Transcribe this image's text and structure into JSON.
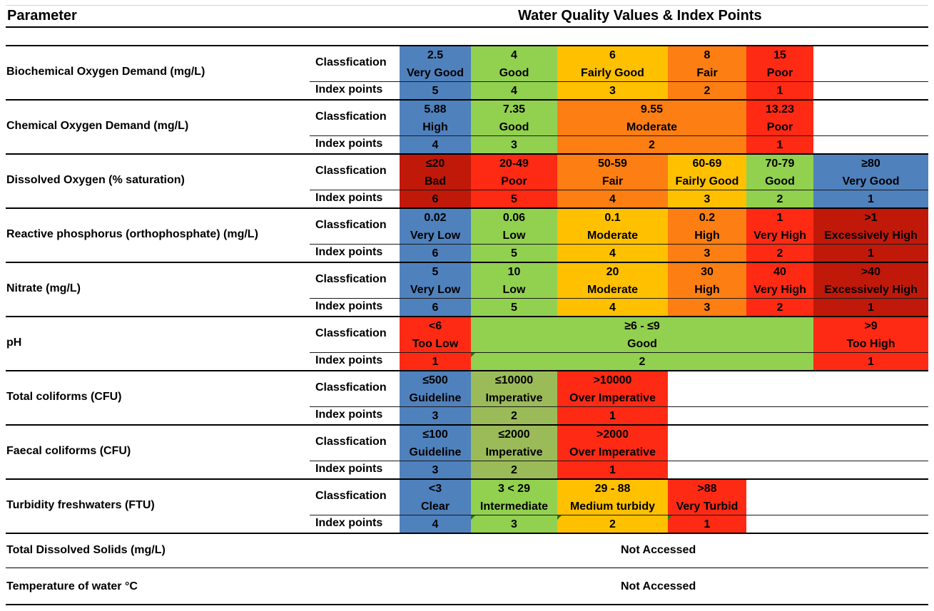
{
  "header": {
    "parameter_label": "Parameter",
    "title": "Water Quality Values & Index Points"
  },
  "row_labels": {
    "classification": "Classfication",
    "index": "Index points"
  },
  "colors": {
    "blue": "#4f81bd",
    "green": "#92d050",
    "olive": "#9bbb59",
    "yellow": "#ffc000",
    "orange": "#fd7e12",
    "red": "#ff2a14",
    "darkred": "#c0190a"
  },
  "parameters": [
    {
      "name": "Biochemical Oxygen Demand  (mg/L)",
      "cells": [
        {
          "value": "2.5",
          "label": "Very Good",
          "points": "5",
          "color": "blue"
        },
        {
          "value": "4",
          "label": "Good",
          "points": "4",
          "color": "green"
        },
        {
          "value": "6",
          "label": "Fairly Good",
          "points": "3",
          "color": "yellow"
        },
        {
          "value": "8",
          "label": "Fair",
          "points": "2",
          "color": "orange"
        },
        {
          "value": "15",
          "label": "Poor",
          "points": "1",
          "color": "red"
        }
      ]
    },
    {
      "name": "Chemical Oxygen Demand (mg/L)",
      "cells": [
        {
          "value": "5.88",
          "label": "High",
          "points": "4",
          "color": "blue"
        },
        {
          "value": "7.35",
          "label": "Good",
          "points": "3",
          "color": "green"
        },
        {
          "value": "9.55",
          "label": "Moderate",
          "points": "2",
          "color": "orange"
        },
        {
          "value": "13.23",
          "label": "Poor",
          "points": "1",
          "color": "red"
        }
      ]
    },
    {
      "name": "Dissolved Oxygen (% saturation)",
      "cells": [
        {
          "value": "≤20",
          "label": "Bad",
          "points": "6",
          "color": "darkred"
        },
        {
          "value": "20-49",
          "label": "Poor",
          "points": "5",
          "color": "red"
        },
        {
          "value": "50-59",
          "label": "Fair",
          "points": "4",
          "color": "orange"
        },
        {
          "value": "60-69",
          "label": "Fairly Good",
          "points": "3",
          "color": "yellow"
        },
        {
          "value": "70-79",
          "label": "Good",
          "points": "2",
          "color": "green"
        },
        {
          "value": "≥80",
          "label": "Very Good",
          "points": "1",
          "color": "blue"
        }
      ]
    },
    {
      "name": "Reactive phosphorus (orthophosphate) (mg/L)",
      "cells": [
        {
          "value": "0.02",
          "label": "Very Low",
          "points": "6",
          "color": "blue"
        },
        {
          "value": "0.06",
          "label": "Low",
          "points": "5",
          "color": "green"
        },
        {
          "value": "0.1",
          "label": "Moderate",
          "points": "4",
          "color": "yellow"
        },
        {
          "value": "0.2",
          "label": "High",
          "points": "3",
          "color": "orange"
        },
        {
          "value": "1",
          "label": "Very High",
          "points": "2",
          "color": "red"
        },
        {
          "value": ">1",
          "label": "Excessively High",
          "points": "1",
          "color": "darkred"
        }
      ]
    },
    {
      "name": "Nitrate (mg/L)",
      "cells": [
        {
          "value": "5",
          "label": "Very Low",
          "points": "6",
          "color": "blue"
        },
        {
          "value": "10",
          "label": "Low",
          "points": "5",
          "color": "green"
        },
        {
          "value": "20",
          "label": "Moderate",
          "points": "4",
          "color": "yellow"
        },
        {
          "value": "30",
          "label": "High",
          "points": "3",
          "color": "orange"
        },
        {
          "value": "40",
          "label": "Very High",
          "points": "2",
          "color": "red"
        },
        {
          "value": ">40",
          "label": "Excessively High",
          "points": "1",
          "color": "darkred"
        }
      ]
    },
    {
      "name": "pH",
      "cells": [
        {
          "value": "<6",
          "label": "Too Low",
          "points": "1",
          "color": "red"
        },
        {
          "value": "≥6 - ≤9",
          "label": "Good",
          "points": "2",
          "color": "green"
        },
        {
          "value": ">9",
          "label": "Too High",
          "points": "1",
          "color": "red"
        }
      ]
    },
    {
      "name": "Total coliforms (CFU)",
      "cells": [
        {
          "value": "≤500",
          "label": "Guideline",
          "points": "3",
          "color": "blue"
        },
        {
          "value": "≤10000",
          "label": "Imperative",
          "points": "2",
          "color": "olive"
        },
        {
          "value": ">10000",
          "label": "Over Imperative",
          "points": "1",
          "color": "red"
        }
      ]
    },
    {
      "name": "Faecal coliforms (CFU)",
      "cells": [
        {
          "value": "≤100",
          "label": "Guideline",
          "points": "3",
          "color": "blue"
        },
        {
          "value": "≤2000",
          "label": "Imperative",
          "points": "2",
          "color": "olive"
        },
        {
          "value": ">2000",
          "label": "Over Imperative",
          "points": "1",
          "color": "red"
        }
      ]
    },
    {
      "name": "Turbidity freshwaters (FTU)",
      "cells": [
        {
          "value": "<3",
          "label": "Clear",
          "points": "4",
          "color": "blue"
        },
        {
          "value": "3 < 29",
          "label": "Intermediate",
          "points": "3",
          "color": "green"
        },
        {
          "value": "29 - 88",
          "label": "Medium turbidy",
          "points": "2",
          "color": "yellow"
        },
        {
          "value": ">88",
          "label": "Very Turbid",
          "points": "1",
          "color": "red"
        }
      ]
    }
  ],
  "unassessed": [
    {
      "name": "Total Dissolved Solids (mg/L)",
      "status": "Not Accessed"
    },
    {
      "name": "Temperature of water °C",
      "status": "Not Accessed"
    }
  ]
}
